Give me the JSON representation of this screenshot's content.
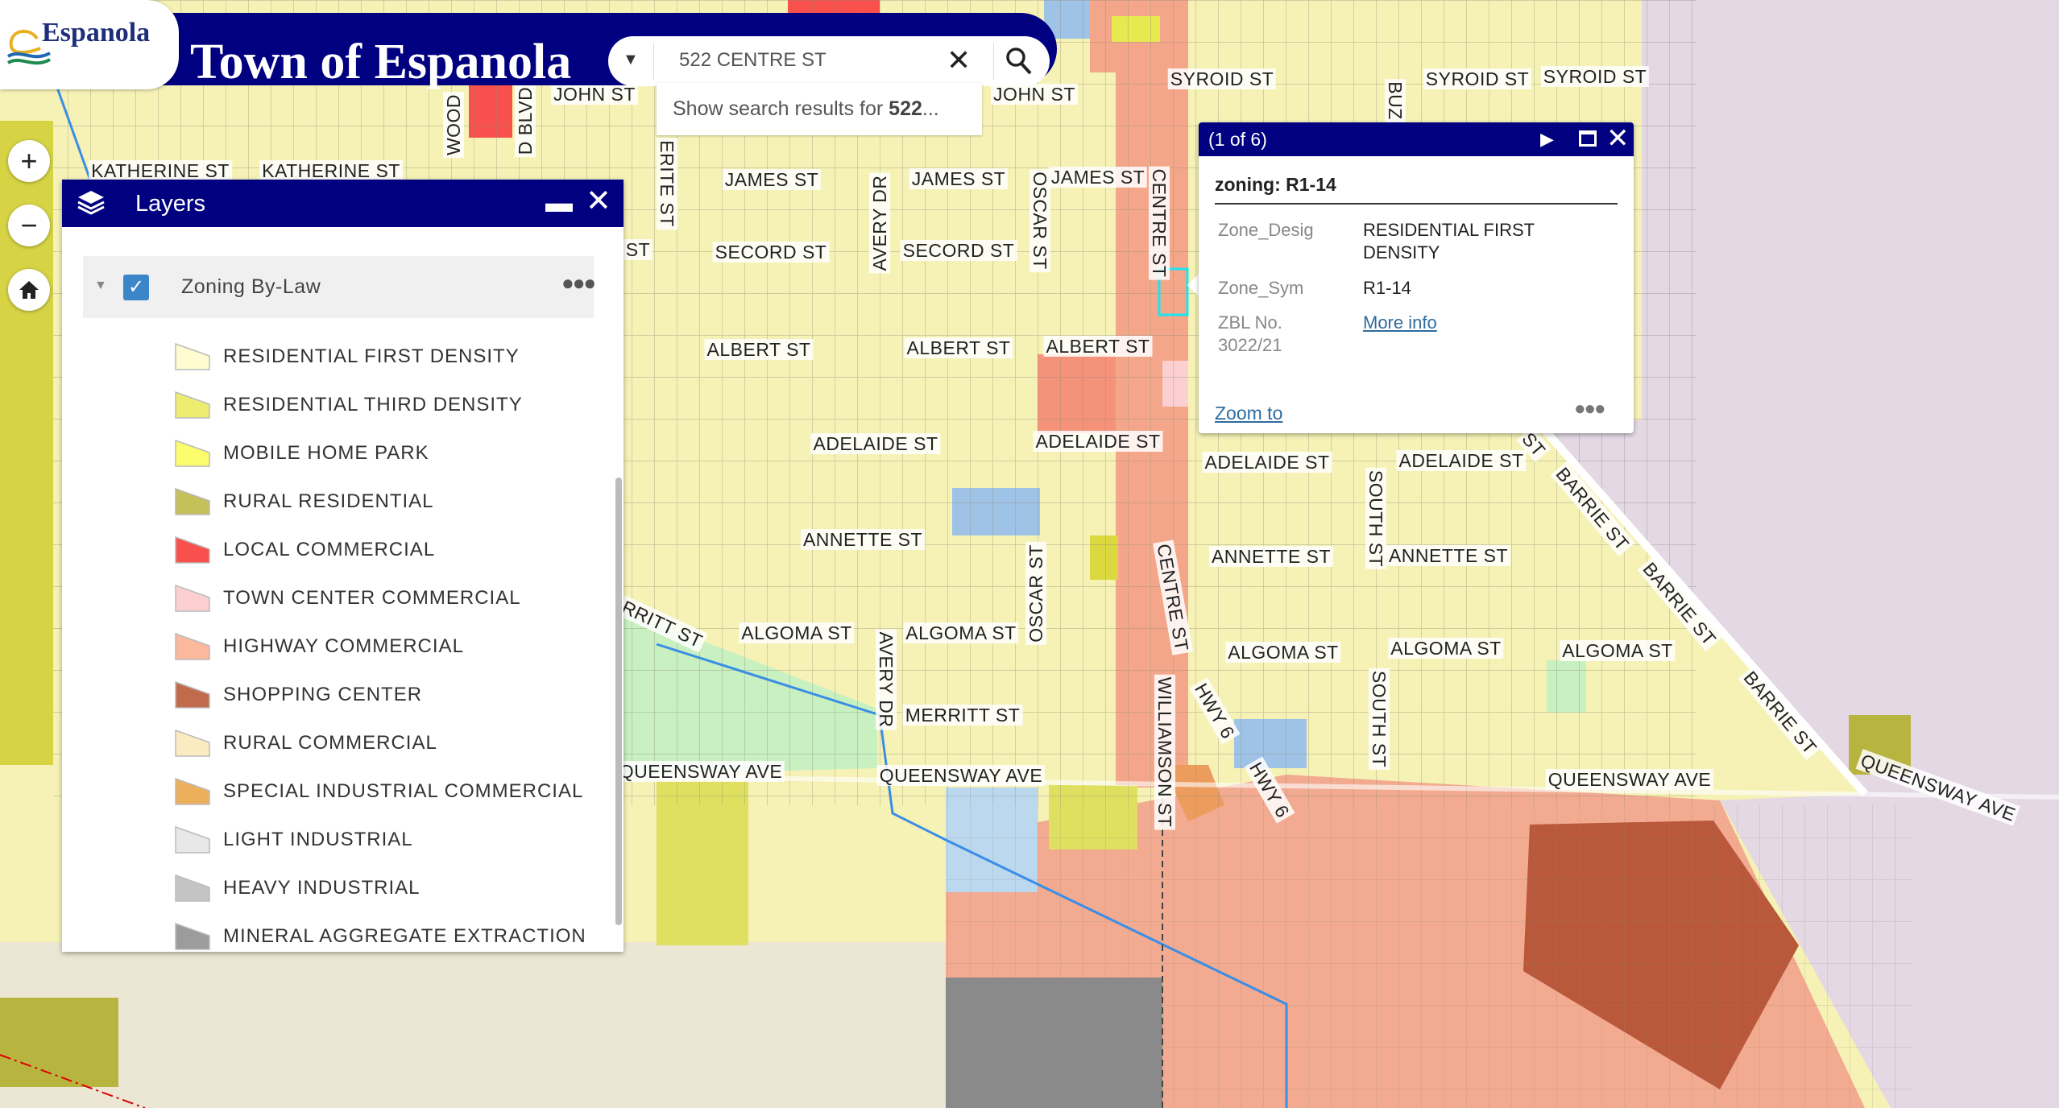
{
  "header": {
    "logo_text": "Espanola",
    "title": "Town of Espanola"
  },
  "search": {
    "value": "522 CENTRE ST",
    "suggestion_prefix": "Show search results for ",
    "suggestion_term": "522",
    "suggestion_suffix": "..."
  },
  "map_controls": {
    "zoom_in": "+",
    "zoom_out": "−",
    "home": "home-icon"
  },
  "layers_panel": {
    "title": "Layers",
    "layer": {
      "name": "Zoning By-Law",
      "checked": true
    },
    "legend": [
      {
        "label": "RESIDENTIAL FIRST DENSITY",
        "color": "#fefcd0"
      },
      {
        "label": "RESIDENTIAL THIRD DENSITY",
        "color": "#eeec70"
      },
      {
        "label": "MOBILE HOME PARK",
        "color": "#fcfc6c"
      },
      {
        "label": "RURAL RESIDENTIAL",
        "color": "#c4c05a"
      },
      {
        "label": "LOCAL COMMERCIAL",
        "color": "#f8504c"
      },
      {
        "label": "TOWN CENTER COMMERCIAL",
        "color": "#fcd0d0"
      },
      {
        "label": "HIGHWAY COMMERCIAL",
        "color": "#fcb89c"
      },
      {
        "label": "SHOPPING CENTER",
        "color": "#c06c4c"
      },
      {
        "label": "RURAL COMMERCIAL",
        "color": "#fceac0"
      },
      {
        "label": "SPECIAL INDUSTRIAL COMMERCIAL",
        "color": "#ecb05c"
      },
      {
        "label": "LIGHT INDUSTRIAL",
        "color": "#e8e8e8"
      },
      {
        "label": "HEAVY INDUSTRIAL",
        "color": "#c4c4c4"
      },
      {
        "label": "MINERAL AGGREGATE EXTRACTION",
        "color": "#9c9c9c"
      }
    ]
  },
  "popup": {
    "counter": "(1 of 6)",
    "title": "zoning: R1-14",
    "fields": [
      {
        "key": "Zone_Desig",
        "value": "RESIDENTIAL FIRST DENSITY"
      },
      {
        "key": "Zone_Sym",
        "value": "R1-14"
      },
      {
        "key": "ZBL No. 3022/21",
        "value": "More info"
      }
    ],
    "zoom_to": "Zoom to"
  },
  "streets": [
    "SYROID ST",
    "SYROID ST",
    "SYROID ST",
    "JOHN ST",
    "JOHN ST",
    "KATHERINE ST",
    "KATHERINE ST",
    "JAMES ST",
    "JAMES ST",
    "JAMES ST",
    "SECORD ST",
    "SECORD ST",
    "ALBERT ST",
    "ALBERT ST",
    "ALBERT ST",
    "ADELAIDE ST",
    "ADELAIDE ST",
    "ADELAIDE ST",
    "ADELAIDE ST",
    "ANNETTE ST",
    "ANNETTE ST",
    "ANNETTE ST",
    "ALGOMA ST",
    "ALGOMA ST",
    "ALGOMA ST",
    "ALGOMA ST",
    "ALGOMA ST",
    "MERRITT ST",
    "QUEENSWAY AVE",
    "QUEENSWAY AVE",
    "QUEENSWAY AVE",
    "QUEENSWAY AVE",
    "AVERY DR",
    "OSCAR ST",
    "CENTRE ST",
    "OSCAR ST",
    "CENTRE ST",
    "AVERY DR",
    "WILLIAMSON ST",
    "SOUTH ST",
    "SOUTH ST",
    "HWY 6",
    "HWY 6",
    "BARRIE ST",
    "BARRIE ST",
    "BARRIE ST",
    "ERITE ST",
    "WOOD",
    "D BLVD",
    "ST",
    "RRITT ST",
    "BUZ",
    "ST"
  ]
}
